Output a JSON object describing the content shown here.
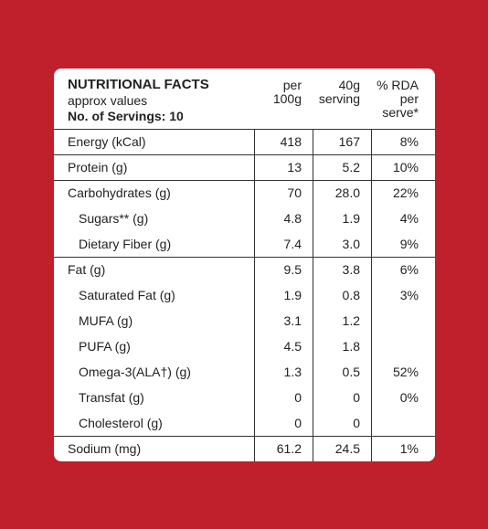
{
  "header": {
    "title": "NUTRITIONAL FACTS",
    "subtitle": "approx values",
    "servings": "No. of Servings: 10",
    "columns": [
      [
        "per",
        "100g"
      ],
      [
        "40g",
        "serving"
      ],
      [
        "% RDA",
        "per",
        "serve*"
      ]
    ]
  },
  "table": {
    "rows": [
      {
        "label": "Energy (kCal)",
        "cells": [
          "418",
          "167",
          "8%"
        ],
        "sub": []
      },
      {
        "label": "Protein (g)",
        "cells": [
          "13",
          "5.2",
          "10%"
        ],
        "sub": []
      },
      {
        "label": "Carbohydrates (g)",
        "cells": [
          "70",
          "28.0",
          "22%"
        ],
        "sub": [
          {
            "label": "Sugars** (g)",
            "cells": [
              "4.8",
              "1.9",
              "4%"
            ]
          },
          {
            "label": "Dietary Fiber (g)",
            "cells": [
              "7.4",
              "3.0",
              "9%"
            ]
          }
        ]
      },
      {
        "label": "Fat (g)",
        "cells": [
          "9.5",
          "3.8",
          "6%"
        ],
        "sub": [
          {
            "label": "Saturated Fat (g)",
            "cells": [
              "1.9",
              "0.8",
              "3%"
            ]
          },
          {
            "label": "MUFA (g)",
            "cells": [
              "3.1",
              "1.2",
              null
            ]
          },
          {
            "label": "PUFA (g)",
            "cells": [
              "4.5",
              "1.8",
              null
            ]
          },
          {
            "label": "Omega-3(ALA†) (g)",
            "cells": [
              "1.3",
              "0.5",
              "52%"
            ]
          },
          {
            "label": "Transfat (g)",
            "cells": [
              "0",
              "0",
              "0%"
            ]
          },
          {
            "label": "Cholesterol (g)",
            "cells": [
              "0",
              "0",
              null
            ]
          }
        ]
      },
      {
        "label": "Sodium (mg)",
        "cells": [
          "61.2",
          "24.5",
          "1%"
        ],
        "sub": []
      }
    ]
  }
}
